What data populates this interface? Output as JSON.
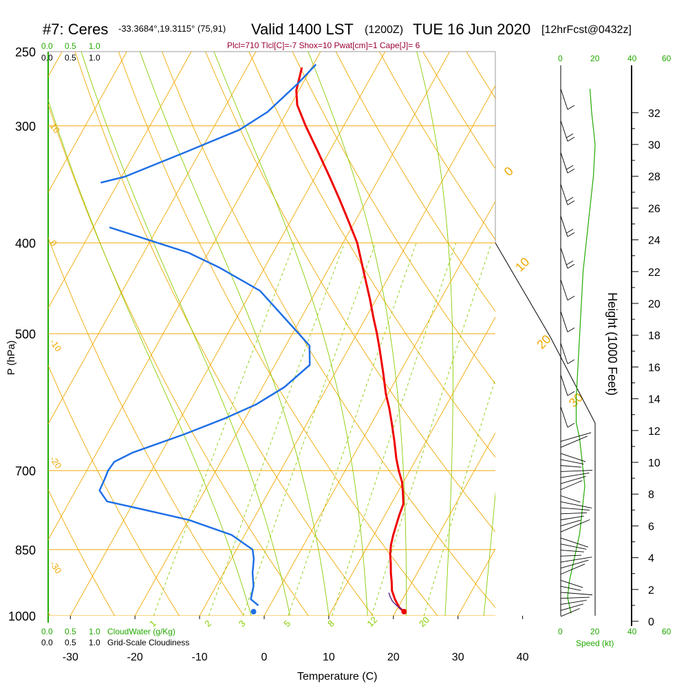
{
  "header": {
    "station": "#7: Ceres",
    "coords": "-33.3684°,19.3115° (75,91)",
    "valid": "Valid 1400 LST",
    "zulu": "(1200Z)",
    "date": "TUE 16 Jun 2020",
    "forecast": "[12hrFcst@0432z]",
    "indices": "Plcl=710 Tlcl[C]=-7 Shox=10 Pwat[cm]=1 Cape[J]= 6"
  },
  "cloud_scale": {
    "green_top": [
      "0.0",
      "0.5",
      "1.0"
    ],
    "black_top": [
      "0.0",
      "0.5",
      "1.0"
    ],
    "green_bottom": [
      "0.0",
      "0.5",
      "1.0"
    ],
    "black_bottom": [
      "0.0",
      "0.5",
      "1.0"
    ],
    "cloudwater_label": "CloudWater (g/Kg)",
    "cloudiness_label": "Grid-Scale Cloudiness"
  },
  "wind_scale": {
    "top": [
      "0",
      "20",
      "40",
      "60"
    ],
    "bottom": [
      "0",
      "20",
      "40",
      "60"
    ],
    "speed_label": "Speed (kt)"
  },
  "colors": {
    "temperature": "#ee0000",
    "dewpoint": "#1f6fe6",
    "isotherm": "#f0a800",
    "dry_adiabat": "#f0a800",
    "moist_adiabat": "#88cc00",
    "mixing_ratio": "#88cc00",
    "scale_green": "#22aa00",
    "indices": "#990033"
  },
  "chart_data": {
    "type": "line",
    "title": "Skew-T log-P sounding",
    "xlabel": "Temperature (C)",
    "ylabel": "P (hPa)",
    "y2label": "Height (1000 Feet)",
    "xlim": [
      -35,
      35
    ],
    "ylim": [
      1000,
      250
    ],
    "x_ticks": [
      "-30",
      "-20",
      "-10",
      "0",
      "10",
      "20",
      "30",
      "40"
    ],
    "x_tick_values": [
      -30,
      -20,
      -10,
      0,
      10,
      20,
      30,
      40
    ],
    "p_ticks": [
      "250",
      "300",
      "400",
      "500",
      "700",
      "850",
      "1000"
    ],
    "p_tick_values": [
      250,
      300,
      400,
      500,
      700,
      850,
      1000
    ],
    "height_ticks": [
      "0",
      "2",
      "4",
      "6",
      "8",
      "10",
      "12",
      "14",
      "16",
      "18",
      "20",
      "22",
      "24",
      "26",
      "28",
      "30",
      "32"
    ],
    "height_tick_values": [
      0,
      2,
      4,
      6,
      8,
      10,
      12,
      14,
      16,
      18,
      20,
      22,
      24,
      26,
      28,
      30,
      32
    ],
    "isotherm_labels": [
      {
        "text": "10",
        "t": 10,
        "p": 300
      },
      {
        "text": "0",
        "t": 0,
        "p": 400
      },
      {
        "text": "-10",
        "t": -10,
        "p": 510
      },
      {
        "text": "-20",
        "t": -20,
        "p": 680
      },
      {
        "text": "-30",
        "t": -30,
        "p": 880
      },
      {
        "text": "0",
        "t": 0,
        "p": 340
      },
      {
        "text": "10",
        "t": 10,
        "p": 430
      },
      {
        "text": "20",
        "t": 20,
        "p": 520
      },
      {
        "text": "30",
        "t": 30,
        "p": 600
      }
    ],
    "mixing_ratio_labels": [
      "1",
      "2",
      "3",
      "5",
      "8",
      "12",
      "20"
    ],
    "mixing_ratio_values": [
      1,
      2,
      3,
      5,
      8,
      12,
      20
    ],
    "series": [
      {
        "name": "Temperature",
        "points": [
          {
            "p": 990,
            "t": 21.3
          },
          {
            "p": 980,
            "t": 20.2
          },
          {
            "p": 960,
            "t": 18.8
          },
          {
            "p": 940,
            "t": 17.6
          },
          {
            "p": 920,
            "t": 16.8
          },
          {
            "p": 900,
            "t": 15.9
          },
          {
            "p": 880,
            "t": 15.1
          },
          {
            "p": 860,
            "t": 14.2
          },
          {
            "p": 840,
            "t": 13.5
          },
          {
            "p": 820,
            "t": 13.0
          },
          {
            "p": 800,
            "t": 12.6
          },
          {
            "p": 780,
            "t": 12.2
          },
          {
            "p": 760,
            "t": 11.9
          },
          {
            "p": 740,
            "t": 10.9
          },
          {
            "p": 720,
            "t": 9.8
          },
          {
            "p": 700,
            "t": 8.3
          },
          {
            "p": 680,
            "t": 6.9
          },
          {
            "p": 650,
            "t": 5.0
          },
          {
            "p": 620,
            "t": 2.9
          },
          {
            "p": 600,
            "t": 1.4
          },
          {
            "p": 580,
            "t": -0.3
          },
          {
            "p": 550,
            "t": -2.6
          },
          {
            "p": 520,
            "t": -5.1
          },
          {
            "p": 500,
            "t": -6.9
          },
          {
            "p": 480,
            "t": -8.9
          },
          {
            "p": 460,
            "t": -10.9
          },
          {
            "p": 440,
            "t": -13.1
          },
          {
            "p": 420,
            "t": -15.4
          },
          {
            "p": 400,
            "t": -17.8
          },
          {
            "p": 380,
            "t": -20.9
          },
          {
            "p": 360,
            "t": -24.2
          },
          {
            "p": 340,
            "t": -27.8
          },
          {
            "p": 320,
            "t": -31.7
          },
          {
            "p": 300,
            "t": -35.9
          },
          {
            "p": 285,
            "t": -39.0
          },
          {
            "p": 275,
            "t": -40.4
          },
          {
            "p": 260,
            "t": -41.5
          }
        ]
      },
      {
        "name": "Dewpoint",
        "points": [
          {
            "p": 975,
            "t": -1.8
          },
          {
            "p": 960,
            "t": -3.5
          },
          {
            "p": 930,
            "t": -4.2
          },
          {
            "p": 900,
            "t": -5.5
          },
          {
            "p": 870,
            "t": -6.5
          },
          {
            "p": 850,
            "t": -7.5
          },
          {
            "p": 820,
            "t": -12.0
          },
          {
            "p": 790,
            "t": -20.0
          },
          {
            "p": 770,
            "t": -28.0
          },
          {
            "p": 755,
            "t": -34.2
          },
          {
            "p": 735,
            "t": -36.3
          },
          {
            "p": 715,
            "t": -36.5
          },
          {
            "p": 700,
            "t": -36.7
          },
          {
            "p": 685,
            "t": -36.5
          },
          {
            "p": 670,
            "t": -34.5
          },
          {
            "p": 640,
            "t": -28.0
          },
          {
            "p": 615,
            "t": -23.0
          },
          {
            "p": 595,
            "t": -19.5
          },
          {
            "p": 570,
            "t": -16.6
          },
          {
            "p": 540,
            "t": -14.6
          },
          {
            "p": 515,
            "t": -16.3
          },
          {
            "p": 500,
            "t": -19.0
          },
          {
            "p": 470,
            "t": -24.7
          },
          {
            "p": 450,
            "t": -28.7
          },
          {
            "p": 425,
            "t": -37.0
          },
          {
            "p": 410,
            "t": -43.0
          },
          {
            "p": 385,
            "t": -57.5
          }
        ]
      },
      {
        "name": "Dewpoint upper",
        "points": [
          {
            "p": 345,
            "t": -62.7
          },
          {
            "p": 340,
            "t": -59.5
          },
          {
            "p": 320,
            "t": -52.2
          },
          {
            "p": 303,
            "t": -45.8
          },
          {
            "p": 290,
            "t": -43.0
          },
          {
            "p": 270,
            "t": -40.7
          },
          {
            "p": 258,
            "t": -39.6
          }
        ]
      },
      {
        "name": "Parcel",
        "points": [
          {
            "p": 985,
            "t": 20.8
          },
          {
            "p": 975,
            "t": 19.6
          },
          {
            "p": 965,
            "t": 18.6
          },
          {
            "p": 955,
            "t": 17.9
          },
          {
            "p": 945,
            "t": 17.3
          }
        ]
      }
    ],
    "surface_markers": [
      {
        "name": "surface-temperature",
        "p": 990,
        "t": 21.3
      },
      {
        "name": "surface-dewpoint",
        "p": 990,
        "t": -2.0
      }
    ],
    "wind_profile": {
      "speed_kt": [
        {
          "h": 0.5,
          "v": 6
        },
        {
          "h": 1.5,
          "v": 4
        },
        {
          "h": 2.5,
          "v": 5
        },
        {
          "h": 3.5,
          "v": 7
        },
        {
          "h": 4.5,
          "v": 9
        },
        {
          "h": 5.5,
          "v": 11
        },
        {
          "h": 6.5,
          "v": 12
        },
        {
          "h": 7.5,
          "v": 13
        },
        {
          "h": 8.5,
          "v": 14
        },
        {
          "h": 9.5,
          "v": 13
        },
        {
          "h": 10.5,
          "v": 12
        },
        {
          "h": 11.5,
          "v": 11
        },
        {
          "h": 12.5,
          "v": 9
        },
        {
          "h": 14,
          "v": 9
        },
        {
          "h": 16,
          "v": 10
        },
        {
          "h": 18,
          "v": 11
        },
        {
          "h": 20,
          "v": 12
        },
        {
          "h": 22,
          "v": 13
        },
        {
          "h": 24,
          "v": 15
        },
        {
          "h": 26,
          "v": 17
        },
        {
          "h": 28,
          "v": 19
        },
        {
          "h": 30,
          "v": 20
        },
        {
          "h": 32,
          "v": 18
        },
        {
          "h": 33.5,
          "v": 17
        }
      ],
      "barbs": [
        {
          "h": 33.5,
          "flags": 1
        },
        {
          "h": 31.5,
          "flags": 2
        },
        {
          "h": 29.5,
          "flags": 2
        },
        {
          "h": 27.5,
          "flags": 2
        },
        {
          "h": 25.5,
          "flags": 2
        },
        {
          "h": 23.5,
          "flags": 2
        },
        {
          "h": 21.5,
          "flags": 1
        },
        {
          "h": 19.5,
          "flags": 1
        },
        {
          "h": 17.5,
          "flags": 1
        },
        {
          "h": 15.5,
          "flags": 1
        },
        {
          "h": 13.5,
          "flags": 1
        }
      ]
    }
  }
}
